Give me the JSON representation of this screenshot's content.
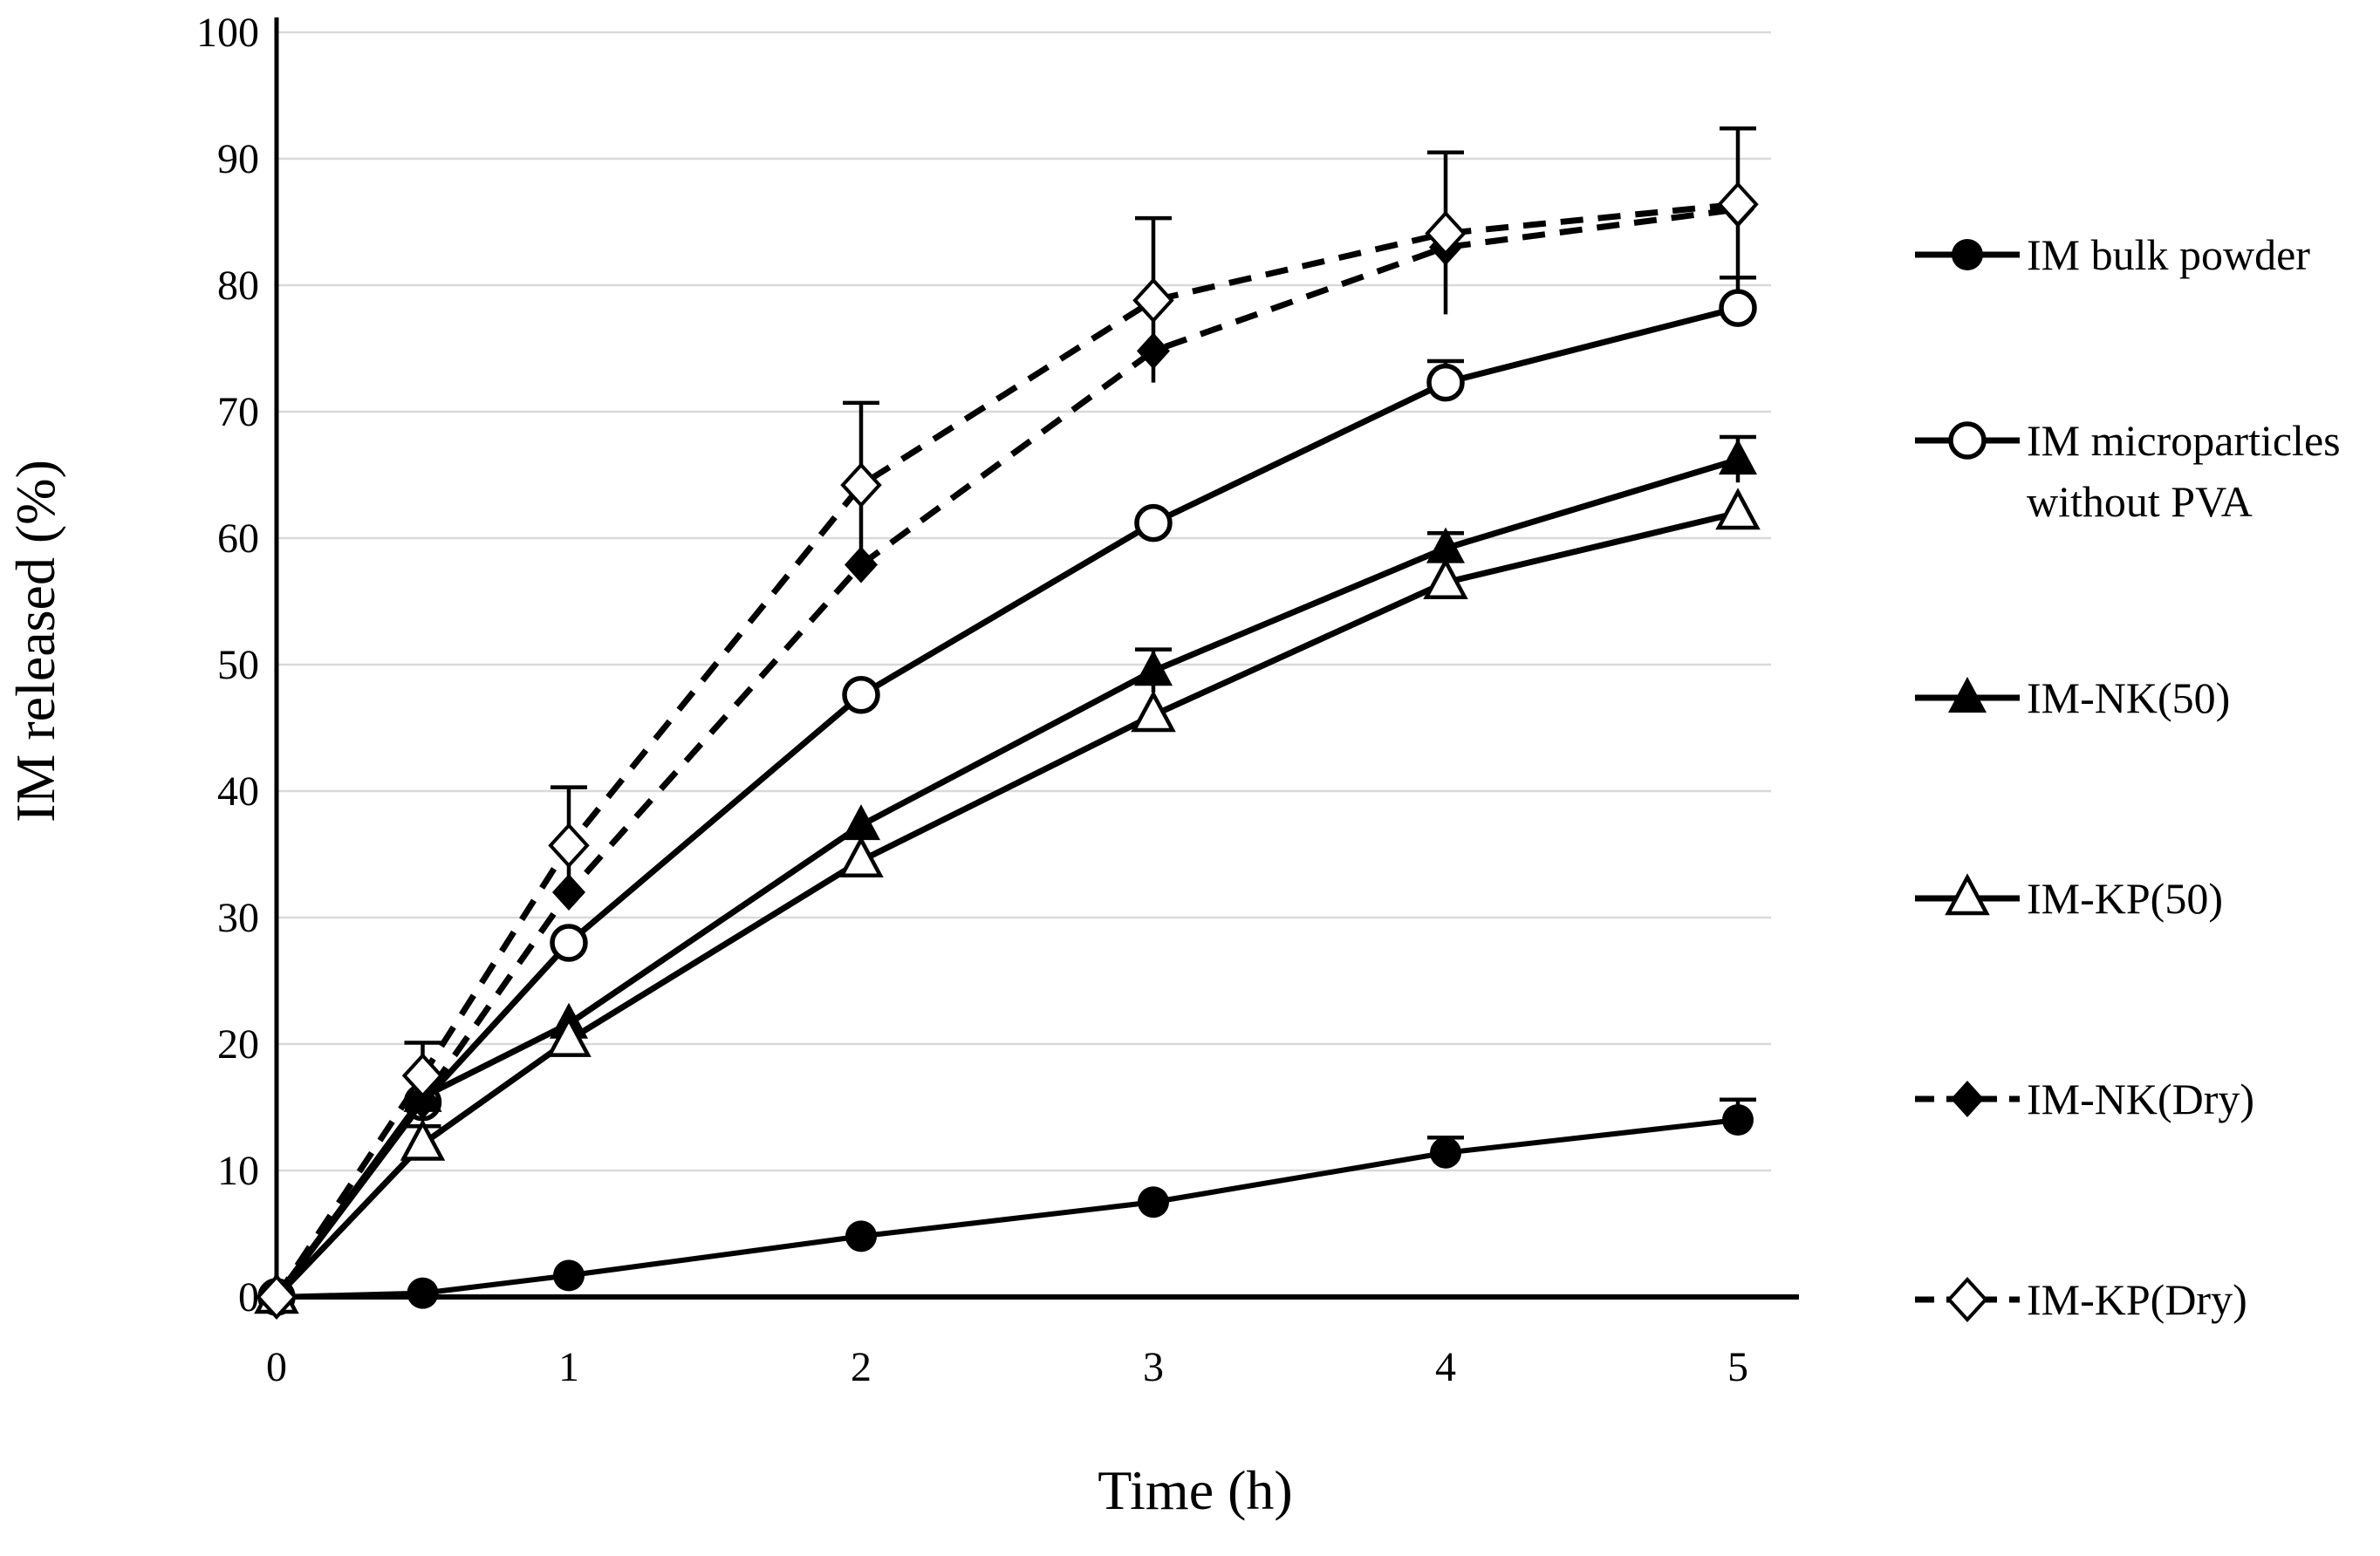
{
  "chart_data": {
    "type": "line",
    "title": "",
    "xlabel": "Time (h)",
    "ylabel": "IM released (%)",
    "x_ticks": [
      "0",
      "1",
      "2",
      "3",
      "4",
      "5"
    ],
    "y_ticks": [
      "0",
      "10",
      "20",
      "30",
      "40",
      "50",
      "60",
      "70",
      "80",
      "90",
      "100"
    ],
    "xlim": [
      0,
      5.2
    ],
    "ylim": [
      0,
      100
    ],
    "grid": "horizontal",
    "legend_position": "right",
    "x": [
      0,
      0.5,
      1,
      2,
      3,
      4,
      5
    ],
    "series": [
      {
        "name": "IM bulk powder",
        "legend_label": "IM bulk powder",
        "marker": "circle-filled",
        "line_style": "solid",
        "values": [
          0,
          0.3,
          1.7,
          4.8,
          7.5,
          11.4,
          14.0
        ],
        "err_top": [
          null,
          null,
          null,
          null,
          null,
          12.6,
          15.6
        ]
      },
      {
        "name": "IM microparticles without PVA",
        "legend_label": "IM microparticles\nwithout PVA",
        "marker": "circle-open",
        "line_style": "solid",
        "values": [
          0,
          15.4,
          28.0,
          47.6,
          61.2,
          72.3,
          78.2
        ],
        "err_top": [
          null,
          null,
          null,
          null,
          null,
          74.0,
          80.6
        ]
      },
      {
        "name": "IM-NK(50)",
        "legend_label": "IM-NK(50)",
        "marker": "triangle-filled",
        "line_style": "solid",
        "values": [
          0,
          15.8,
          21.6,
          37.3,
          49.5,
          59.2,
          66.2
        ],
        "err_top": [
          null,
          null,
          null,
          null,
          51.2,
          60.4,
          68.0
        ],
        "symmetric_lower_stem": true
      },
      {
        "name": "IM-KP(50)",
        "legend_label": "IM-KP(50)",
        "marker": "triangle-open",
        "line_style": "solid",
        "values": [
          0,
          12.1,
          20.3,
          34.5,
          46.0,
          56.5,
          62.0
        ],
        "err_top": [
          null,
          13.5,
          null,
          null,
          null,
          null,
          null
        ]
      },
      {
        "name": "IM-NK(Dry)",
        "legend_label": "IM-NK(Dry)",
        "marker": "diamond-filled",
        "line_style": "dashed",
        "values": [
          0,
          15.5,
          32.0,
          57.9,
          74.8,
          83.0,
          86.0
        ],
        "err_top": [
          null,
          null,
          null,
          null,
          null,
          null,
          null
        ]
      },
      {
        "name": "IM-KP(Dry)",
        "legend_label": "IM-KP(Dry)",
        "marker": "diamond-open",
        "line_style": "dashed",
        "values": [
          0,
          17.5,
          35.7,
          64.2,
          78.8,
          84.1,
          86.4
        ],
        "err_top": [
          null,
          20.1,
          40.3,
          70.7,
          85.3,
          90.5,
          92.4
        ],
        "symmetric_lower_stem": true
      }
    ],
    "colors": {
      "series": "#000000",
      "gridline": "#d9d9d9",
      "background": "#ffffff"
    }
  }
}
